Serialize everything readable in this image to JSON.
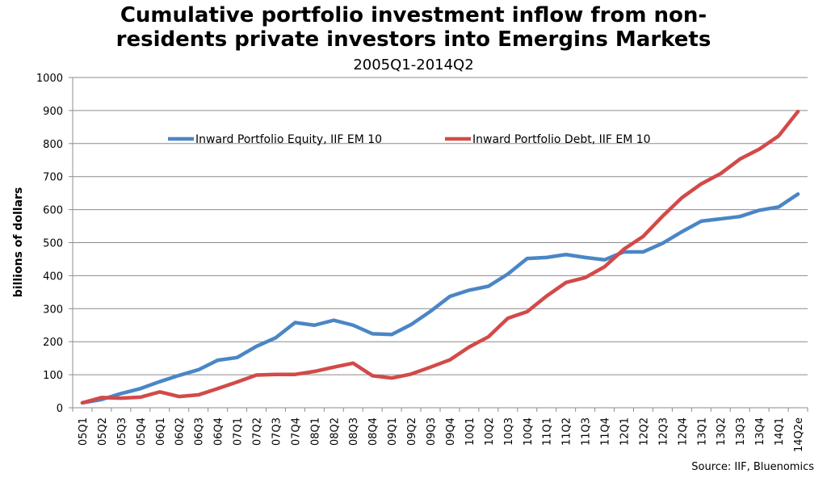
{
  "chart_data": {
    "type": "line",
    "title_line1": "Cumulative portfolio investment inflow from non-",
    "title_line2": "residents private investors into Emergins Markets",
    "subtitle": "2005Q1-2014Q2",
    "xlabel": "",
    "ylabel": "billions of dollars",
    "source": "Source: IIF, Bluenomics",
    "ylim": [
      0,
      1000
    ],
    "yticks": [
      0,
      100,
      200,
      300,
      400,
      500,
      600,
      700,
      800,
      900,
      1000
    ],
    "grid": "horizontal",
    "legend_position": "top-left, inside plot",
    "categories": [
      "05Q1",
      "05Q2",
      "05Q3",
      "05Q4",
      "06Q1",
      "06Q2",
      "06Q3",
      "06Q4",
      "07Q1",
      "07Q2",
      "07Q3",
      "07Q4",
      "08Q1",
      "08Q2",
      "08Q3",
      "08Q4",
      "09Q1",
      "09Q2",
      "09Q3",
      "09Q4",
      "10Q1",
      "10Q2",
      "10Q3",
      "10Q4",
      "11Q1",
      "11Q2",
      "11Q3",
      "11Q4",
      "12Q1",
      "12Q2",
      "12Q3",
      "12Q4",
      "13Q1",
      "13Q2",
      "13Q3",
      "13Q4",
      "14Q1",
      "14Q2e"
    ],
    "series": [
      {
        "name": "Inward Portfolio Equity, IIF EM 10",
        "color": "#4a86c5",
        "values": [
          15,
          25,
          43,
          58,
          79,
          98,
          115,
          144,
          152,
          186,
          212,
          258,
          250,
          265,
          250,
          224,
          222,
          252,
          292,
          337,
          356,
          368,
          405,
          452,
          455,
          464,
          455,
          448,
          472,
          472,
          498,
          533,
          565,
          572,
          579,
          598,
          608,
          647
        ]
      },
      {
        "name": "Inward Portfolio Debt, IIF EM 10",
        "color": "#d24a48",
        "values": [
          15,
          31,
          29,
          32,
          48,
          34,
          39,
          58,
          78,
          99,
          101,
          101,
          110,
          123,
          135,
          97,
          90,
          102,
          123,
          145,
          184,
          215,
          271,
          291,
          338,
          379,
          394,
          427,
          480,
          519,
          580,
          636,
          678,
          709,
          753,
          783,
          823,
          897
        ]
      }
    ]
  }
}
